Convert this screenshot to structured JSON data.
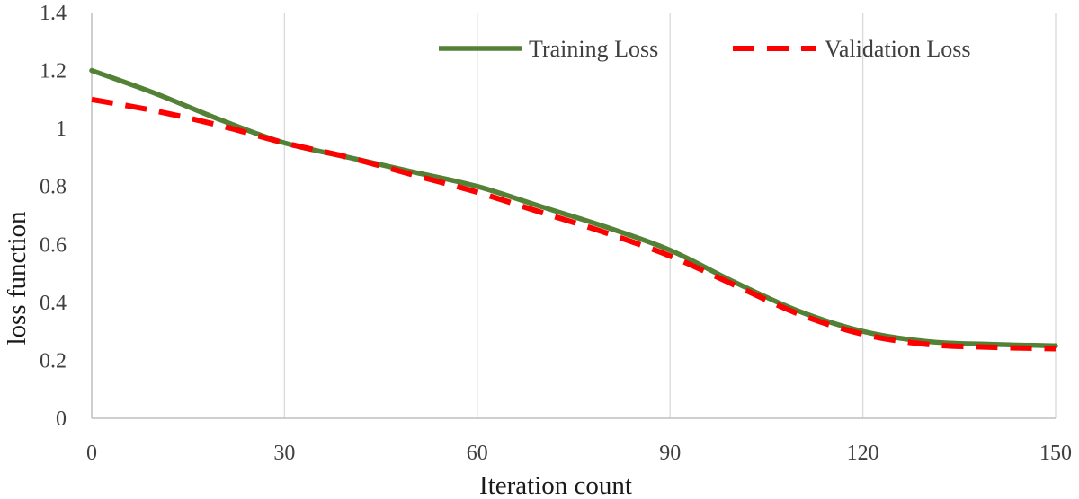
{
  "chart_data": {
    "type": "line",
    "title": "",
    "xlabel": "Iteration count",
    "ylabel": "loss function",
    "xlim": [
      0,
      150
    ],
    "ylim": [
      0,
      1.4
    ],
    "x_ticks": [
      0,
      30,
      60,
      90,
      120,
      150
    ],
    "x_tick_labels": [
      "0",
      "30",
      "60",
      "90",
      "120",
      "150"
    ],
    "y_ticks": [
      0,
      0.2,
      0.4,
      0.6,
      0.8,
      1,
      1.2,
      1.4
    ],
    "y_tick_labels": [
      "0",
      "0.2",
      "0.4",
      "0.6",
      "0.8",
      "1",
      "1.2",
      "1.4"
    ],
    "grid": "vertical",
    "legend": {
      "position": "top-right"
    },
    "series": [
      {
        "name": "Training Loss",
        "color": "#538135",
        "style": "solid",
        "x": [
          0,
          10,
          20,
          30,
          40,
          50,
          60,
          70,
          80,
          90,
          100,
          110,
          120,
          130,
          140,
          150
        ],
        "y": [
          1.2,
          1.12,
          1.03,
          0.95,
          0.9,
          0.85,
          0.8,
          0.73,
          0.66,
          0.58,
          0.47,
          0.37,
          0.3,
          0.265,
          0.255,
          0.25
        ]
      },
      {
        "name": "Validation Loss",
        "color": "#ff0000",
        "style": "dashed",
        "x": [
          0,
          10,
          20,
          30,
          40,
          50,
          60,
          70,
          80,
          90,
          100,
          110,
          120,
          130,
          140,
          150
        ],
        "y": [
          1.1,
          1.06,
          1.01,
          0.95,
          0.9,
          0.84,
          0.78,
          0.71,
          0.64,
          0.56,
          0.46,
          0.36,
          0.29,
          0.255,
          0.245,
          0.24
        ]
      }
    ]
  }
}
